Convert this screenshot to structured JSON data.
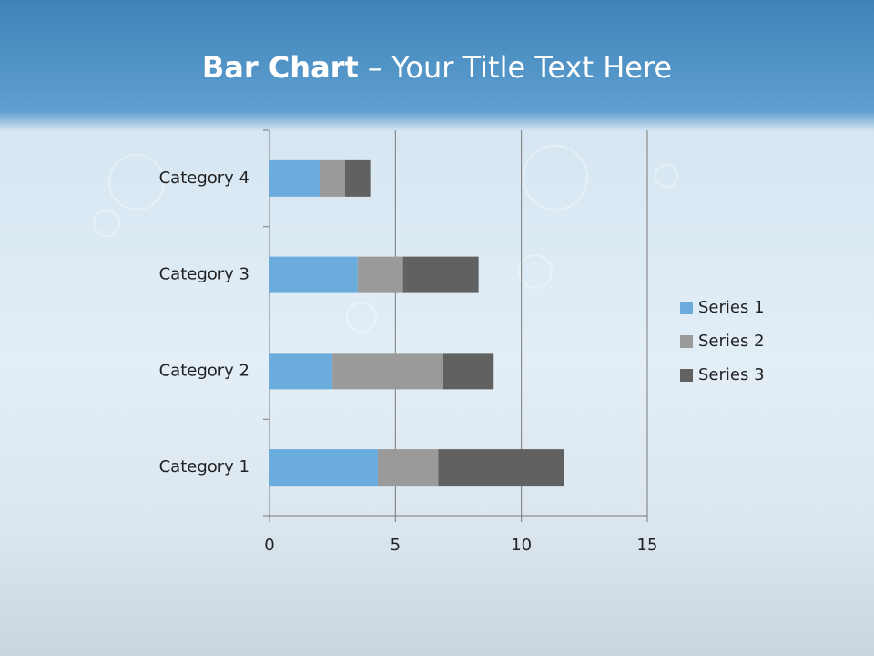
{
  "chart_data": {
    "type": "stacked_barh",
    "title": {
      "bold": "Bar Chart",
      "rest": "– Your Title Text Here"
    },
    "categories": [
      "Category 1",
      "Category 2",
      "Category 3",
      "Category 4"
    ],
    "series": [
      {
        "name": "Series 1",
        "color": "#6aacdc",
        "values": [
          4.3,
          2.5,
          3.5,
          2.0
        ]
      },
      {
        "name": "Series 2",
        "color": "#9a9a9a",
        "values": [
          2.4,
          4.4,
          1.8,
          1.0
        ]
      },
      {
        "name": "Series 3",
        "color": "#616161",
        "values": [
          5.0,
          2.0,
          3.0,
          1.0
        ]
      }
    ],
    "xlim": [
      0,
      15
    ],
    "xticks": [
      0,
      5,
      10,
      15
    ],
    "grid": true,
    "legend": "right"
  }
}
